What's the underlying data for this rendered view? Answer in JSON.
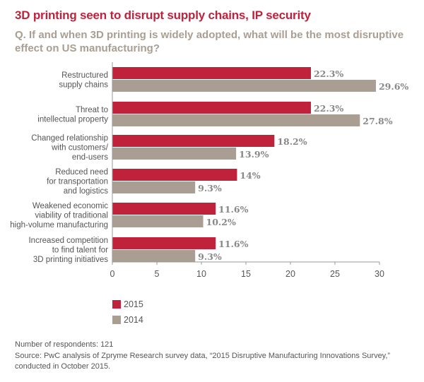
{
  "title": "3D printing seen to disrupt supply chains, IP security",
  "question": "Q. If and when 3D printing is widely adopted, what will be the most disruptive effect on US manufacturing?",
  "legend": [
    {
      "label": "2015",
      "color": "#c0223b"
    },
    {
      "label": "2014",
      "color": "#a99e91"
    }
  ],
  "footer": {
    "respondents": "Number of respondents: 121",
    "source": "Source: PwC analysis of Zpryme Research survey data, “2015 Disruptive Manufacturing Innovations Survey,” conducted in October 2015."
  },
  "chart_data": {
    "type": "bar",
    "orientation": "horizontal",
    "categories": [
      [
        "Restructured",
        "supply chains"
      ],
      [
        "Threat to",
        "intellectual property"
      ],
      [
        "Changed relationship",
        "with customers/",
        "end-users"
      ],
      [
        "Reduced need",
        "for transportation",
        "and logistics"
      ],
      [
        "Weakened economic",
        "viability of traditional",
        "high-volume manufacturing"
      ],
      [
        "Increased competition",
        "to find talent for",
        "3D printing initiatives"
      ]
    ],
    "series": [
      {
        "name": "2015",
        "color": "#c0223b",
        "values": [
          22.3,
          22.3,
          18.2,
          14,
          11.6,
          11.6
        ],
        "labels": [
          "22.3%",
          "22.3%",
          "18.2%",
          "14%",
          "11.6%",
          "11.6%"
        ]
      },
      {
        "name": "2014",
        "color": "#a99e91",
        "values": [
          29.6,
          27.8,
          13.9,
          9.3,
          10.2,
          9.3
        ],
        "labels": [
          "29.6%",
          "27.8%",
          "13.9%",
          "9.3%",
          "10.2%",
          "9.3%"
        ]
      }
    ],
    "xlim": [
      0,
      30
    ],
    "xticks": [
      0,
      5,
      10,
      15,
      20,
      25,
      30
    ],
    "grid": false,
    "legend_position": "bottom-left"
  }
}
